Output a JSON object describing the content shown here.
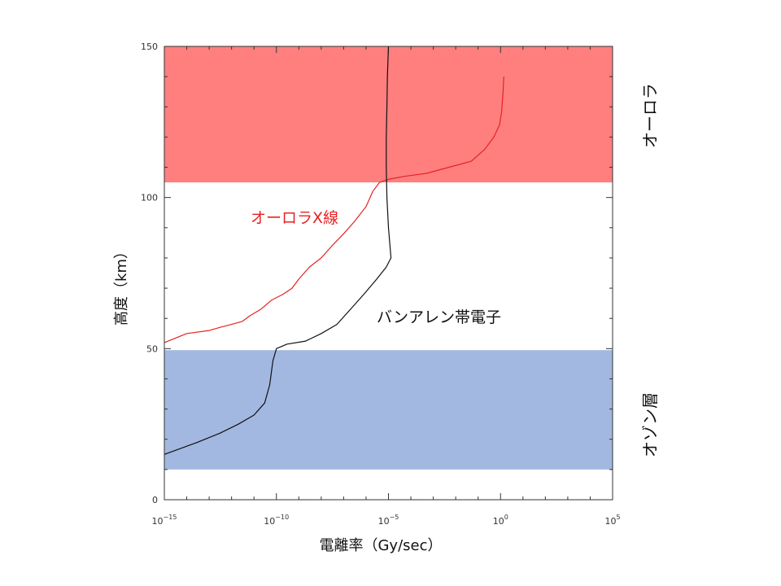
{
  "chart_data": {
    "type": "line",
    "xscale": "log",
    "xlim": [
      1e-15,
      100000.0
    ],
    "ylim": [
      0,
      150
    ],
    "xlabel": "電離率（Gy/sec）",
    "ylabel": "高度（km）",
    "x_ticks": [
      {
        "base": "10",
        "exp": "−15"
      },
      {
        "base": "10",
        "exp": "−10"
      },
      {
        "base": "10",
        "exp": "−5"
      },
      {
        "base": "10",
        "exp": "0"
      },
      {
        "base": "10",
        "exp": "5"
      }
    ],
    "y_ticks": [
      "0",
      "50",
      "100",
      "150"
    ],
    "y_tick_values": [
      0,
      50,
      100,
      150
    ],
    "bands": [
      {
        "label": "オーロラ",
        "y_from": 105,
        "y_to": 150,
        "color": "#ff7f7f"
      },
      {
        "label": "オゾン層",
        "y_from": 10,
        "y_to": 49.5,
        "color": "#a2b8e0"
      }
    ],
    "series": [
      {
        "name": "オーロラX線",
        "color": "#e62222",
        "points": [
          [
            1.4,
            140
          ],
          [
            1.3,
            135
          ],
          [
            1.1,
            128
          ],
          [
            0.9,
            124
          ],
          [
            0.5,
            120
          ],
          [
            0.2,
            116
          ],
          [
            0.05,
            112
          ],
          [
            0.005,
            110
          ],
          [
            0.0005,
            108
          ],
          [
            5e-05,
            107
          ],
          [
            1e-05,
            106
          ],
          [
            4e-06,
            105
          ],
          [
            2e-06,
            102
          ],
          [
            1e-06,
            97
          ],
          [
            3e-07,
            92
          ],
          [
            1e-07,
            88
          ],
          [
            3e-08,
            84
          ],
          [
            1e-08,
            80
          ],
          [
            3e-09,
            77
          ],
          [
            1e-09,
            73
          ],
          [
            5e-10,
            70
          ],
          [
            2e-10,
            68
          ],
          [
            6e-11,
            66
          ],
          [
            2e-11,
            63
          ],
          [
            7e-12,
            61
          ],
          [
            3e-12,
            59
          ],
          [
            1e-12,
            58
          ],
          [
            3e-13,
            57
          ],
          [
            1e-13,
            56
          ],
          [
            1e-14,
            55
          ],
          [
            1e-15,
            52
          ]
        ]
      },
      {
        "name": "バンアレン帯電子",
        "color": "#111111",
        "points": [
          [
            1e-05,
            150
          ],
          [
            9e-06,
            140
          ],
          [
            8.5e-06,
            130
          ],
          [
            8e-06,
            120
          ],
          [
            8e-06,
            110
          ],
          [
            8.5e-06,
            100
          ],
          [
            1e-05,
            90
          ],
          [
            1.3e-05,
            80
          ],
          [
            8e-06,
            77
          ],
          [
            3e-06,
            73
          ],
          [
            8e-07,
            68
          ],
          [
            2e-07,
            63
          ],
          [
            5e-08,
            58
          ],
          [
            1e-08,
            55
          ],
          [
            2e-09,
            52.5
          ],
          [
            3e-10,
            51.5
          ],
          [
            1e-10,
            50
          ],
          [
            7e-11,
            46
          ],
          [
            5e-11,
            38
          ],
          [
            3e-11,
            32
          ],
          [
            1e-11,
            28
          ],
          [
            2e-12,
            25
          ],
          [
            3e-13,
            22
          ],
          [
            3e-14,
            19
          ],
          [
            1e-15,
            15
          ]
        ]
      }
    ]
  }
}
